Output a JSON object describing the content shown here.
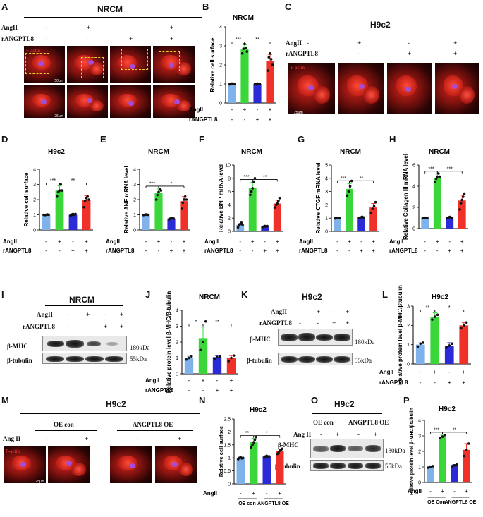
{
  "panels": {
    "A": {
      "letter": "A",
      "title": "NRCM",
      "row_labels": [
        "AngII",
        "rANGPTL8"
      ],
      "signs": {
        "angii": [
          "-",
          "+",
          "-",
          "+"
        ],
        "rangptl8": [
          "-",
          "-",
          "+",
          "+"
        ]
      },
      "stain": "F-actin",
      "scale_top": "50μm",
      "scale_bottom": "25μm"
    },
    "B": {
      "letter": "B",
      "title": "NRCM"
    },
    "C": {
      "letter": "C",
      "title": "H9c2",
      "row_labels": [
        "AngII",
        "rANGPTL8"
      ],
      "signs": {
        "angii": [
          "-",
          "+",
          "-",
          "+"
        ],
        "rangptl8": [
          "-",
          "-",
          "+",
          "+"
        ]
      },
      "stain": "F-actin",
      "scale": "25μm"
    },
    "D": {
      "letter": "D",
      "title": "H9c2"
    },
    "E": {
      "letter": "E",
      "title": "NRCM"
    },
    "F": {
      "letter": "F",
      "title": "NRCM"
    },
    "G": {
      "letter": "G",
      "title": "NRCM"
    },
    "H": {
      "letter": "H",
      "title": "NRCM"
    },
    "I": {
      "letter": "I",
      "title": "NRCM",
      "row_labels": [
        "AngII",
        "rANGPTL8"
      ],
      "signs": {
        "angii": [
          "-",
          "+",
          "-",
          "+"
        ],
        "rangptl8": [
          "-",
          "-",
          "+",
          "+"
        ]
      },
      "bands": [
        "β-MHC",
        "β-tubulin"
      ],
      "kda": [
        "180kDa",
        "55kDa"
      ]
    },
    "J": {
      "letter": "J",
      "title": "NRCM"
    },
    "K": {
      "letter": "K",
      "title": "H9c2",
      "row_labels": [
        "AngII",
        "rANGPTL8"
      ],
      "signs": {
        "angii": [
          "-",
          "+",
          "-",
          "+"
        ],
        "rangptl8": [
          "-",
          "-",
          "+",
          "+"
        ]
      },
      "bands": [
        "β-MHC",
        "β-tubulin"
      ],
      "kda": [
        "180kDa",
        "55kDa"
      ]
    },
    "L": {
      "letter": "L",
      "title": "H9c2"
    },
    "M": {
      "letter": "M",
      "title": "H9c2",
      "groups": [
        "OE con",
        "ANGPTL8 OE"
      ],
      "row_label": "Ang II",
      "signs": [
        "-",
        "+",
        "-",
        "+"
      ],
      "stain": "F-actin",
      "scale": "25μm"
    },
    "N": {
      "letter": "N",
      "title": "H9c2"
    },
    "O": {
      "letter": "O",
      "title": "H9c2",
      "groups": [
        "OE con",
        "ANGPTL8 OE"
      ],
      "row_label": "Ang II",
      "signs": [
        "-",
        "+",
        "-",
        "+"
      ],
      "bands": [
        "β-MHC",
        "β-tubulin"
      ],
      "kda": [
        "180kDa",
        "55kDa"
      ]
    },
    "P": {
      "letter": "P",
      "title": "H9c2"
    }
  },
  "colors": {
    "ctrl": "#7fb2ea",
    "angii": "#3ad63a",
    "r8": "#2a2ad6",
    "both": "#f0312a"
  },
  "chart_data": [
    {
      "id": "B",
      "type": "bar",
      "title": "NRCM",
      "ylabel": "Relative cell surface",
      "ylim": [
        0,
        4
      ],
      "yticks": [
        0,
        1,
        2,
        3,
        4
      ],
      "values": [
        1.0,
        2.85,
        1.0,
        2.2
      ],
      "errors": [
        0.05,
        0.2,
        0.05,
        0.35
      ],
      "points": [
        [
          0.98,
          1.0,
          1.02,
          1.0,
          0.99
        ],
        [
          2.6,
          2.85,
          3.1,
          2.9,
          2.7
        ],
        [
          1.0,
          0.98,
          1.02,
          1.0,
          1.0
        ],
        [
          1.7,
          2.4,
          2.6,
          2.3,
          2.0
        ]
      ],
      "sig": [
        [
          "***",
          0,
          1
        ],
        [
          "**",
          1,
          3
        ]
      ],
      "rows": [
        {
          "label": "AngII",
          "signs": [
            "-",
            "+",
            "-",
            "+"
          ]
        },
        {
          "label": "rANGPTL8",
          "signs": [
            "-",
            "-",
            "+",
            "+"
          ]
        }
      ]
    },
    {
      "id": "D",
      "type": "bar",
      "title": "H9c2",
      "ylabel": "Relative cell surface",
      "ylim": [
        0,
        4
      ],
      "yticks": [
        0,
        1,
        2,
        3,
        4
      ],
      "values": [
        1.0,
        2.6,
        1.0,
        2.0
      ],
      "errors": [
        0.03,
        0.3,
        0.08,
        0.25
      ],
      "points": [
        [
          1.0,
          0.98,
          1.0,
          1.02,
          1.0
        ],
        [
          2.2,
          2.5,
          2.6,
          3.0,
          2.6
        ],
        [
          0.95,
          1.0,
          1.05,
          1.0,
          1.05
        ],
        [
          1.5,
          1.9,
          2.1,
          2.2,
          2.0
        ]
      ],
      "sig": [
        [
          "***",
          0,
          1
        ],
        [
          "**",
          1,
          3
        ]
      ],
      "rows": [
        {
          "label": "AngII",
          "signs": [
            "-",
            "+",
            "-",
            "+"
          ]
        },
        {
          "label": "rANGPTL8",
          "signs": [
            "-",
            "-",
            "+",
            "+"
          ]
        }
      ]
    },
    {
      "id": "E",
      "type": "bar",
      "title": "NRCM",
      "ylabel": "Relative ANF mRNA level",
      "ylim": [
        0,
        4
      ],
      "yticks": [
        0,
        1,
        2,
        3,
        4
      ],
      "values": [
        1.0,
        2.45,
        0.75,
        1.9
      ],
      "errors": [
        0.05,
        0.25,
        0.05,
        0.3
      ],
      "points": [
        [
          0.98,
          1.0,
          1.02,
          1.0,
          1.0
        ],
        [
          2.0,
          2.3,
          2.5,
          2.7,
          2.6
        ],
        [
          0.7,
          0.72,
          0.8,
          0.78,
          0.75
        ],
        [
          1.4,
          1.8,
          2.0,
          2.2,
          2.0
        ]
      ],
      "sig": [
        [
          "***",
          0,
          1
        ],
        [
          "*",
          1,
          3
        ]
      ],
      "rows": [
        {
          "label": "AngII",
          "signs": [
            "-",
            "+",
            "-",
            "+"
          ]
        },
        {
          "label": "rANGPTL8",
          "signs": [
            "-",
            "-",
            "+",
            "+"
          ]
        }
      ]
    },
    {
      "id": "F",
      "type": "bar",
      "title": "NRCM",
      "ylabel": "Relative BNP mRNA level",
      "ylim": [
        0,
        10
      ],
      "yticks": [
        0,
        2,
        4,
        6,
        8,
        10
      ],
      "values": [
        1.0,
        6.5,
        0.75,
        4.2
      ],
      "errors": [
        0.2,
        0.9,
        0.1,
        0.5
      ],
      "points": [
        [
          0.6,
          0.9,
          1.1,
          1.3,
          1.0
        ],
        [
          5.5,
          6.0,
          6.5,
          7.5,
          8.0
        ],
        [
          0.65,
          0.7,
          0.8,
          0.75,
          0.8
        ],
        [
          3.6,
          4.0,
          4.2,
          4.6,
          5.0
        ]
      ],
      "sig": [
        [
          "***",
          0,
          1
        ],
        [
          "**",
          1,
          3
        ]
      ],
      "rows": [
        {
          "label": "AngII",
          "signs": [
            "-",
            "+",
            "-",
            "+"
          ]
        },
        {
          "label": "rANGPTL8",
          "signs": [
            "-",
            "-",
            "+",
            "+"
          ]
        }
      ]
    },
    {
      "id": "G",
      "type": "bar",
      "title": "NRCM",
      "ylabel": "Relative CTGF mRNA level",
      "ylim": [
        0,
        5
      ],
      "yticks": [
        0,
        1,
        2,
        3,
        4,
        5
      ],
      "values": [
        1.0,
        3.2,
        1.05,
        1.8
      ],
      "errors": [
        0.05,
        0.4,
        0.05,
        0.3
      ],
      "points": [
        [
          0.98,
          1.0,
          1.02,
          1.0
        ],
        [
          2.7,
          3.0,
          3.4,
          3.8
        ],
        [
          1.0,
          1.05,
          1.1,
          1.05
        ],
        [
          1.4,
          1.7,
          1.9,
          2.2
        ]
      ],
      "sig": [
        [
          "***",
          0,
          1
        ],
        [
          "**",
          1,
          3
        ]
      ],
      "rows": [
        {
          "label": "AngII",
          "signs": [
            "-",
            "+",
            "-",
            "+"
          ]
        },
        {
          "label": "rANGPTL8",
          "signs": [
            "-",
            "-",
            "+",
            "+"
          ]
        }
      ]
    },
    {
      "id": "H",
      "type": "bar",
      "title": "NRCM",
      "ylabel": "Relative Collagen III mRNA level",
      "ylim": [
        0,
        6
      ],
      "yticks": [
        0,
        2,
        4,
        6
      ],
      "values": [
        1.0,
        4.8,
        1.05,
        2.65
      ],
      "errors": [
        0.05,
        0.35,
        0.05,
        0.5
      ],
      "points": [
        [
          0.98,
          1.0,
          1.02,
          1.0,
          1.0
        ],
        [
          4.4,
          4.7,
          4.9,
          5.2,
          4.9
        ],
        [
          1.0,
          1.05,
          1.1,
          1.05,
          1.0
        ],
        [
          1.8,
          2.4,
          2.7,
          3.0,
          3.3
        ]
      ],
      "sig": [
        [
          "***",
          0,
          1
        ],
        [
          "***",
          1,
          3
        ]
      ],
      "rows": [
        {
          "label": "AngII",
          "signs": [
            "-",
            "+",
            "-",
            "+"
          ]
        },
        {
          "label": "rANGPTL8",
          "signs": [
            "-",
            "-",
            "+",
            "+"
          ]
        }
      ]
    },
    {
      "id": "J",
      "type": "bar",
      "title": "NRCM",
      "ylabel": "Relative protein level β-MHC/β-tubulin",
      "ylim": [
        0,
        4
      ],
      "yticks": [
        0,
        1,
        2,
        3,
        4
      ],
      "values": [
        1.0,
        2.25,
        1.05,
        1.0
      ],
      "errors": [
        0.1,
        0.7,
        0.1,
        0.15
      ],
      "points": [
        [
          0.9,
          1.0,
          1.1
        ],
        [
          1.5,
          2.0,
          3.3
        ],
        [
          0.95,
          1.05,
          1.1
        ],
        [
          0.8,
          1.0,
          1.15
        ]
      ],
      "sig": [
        [
          "*",
          0,
          1
        ],
        [
          "**",
          1,
          3
        ]
      ],
      "rows": [
        {
          "label": "AngII",
          "signs": [
            "-",
            "+",
            "-",
            "+"
          ]
        },
        {
          "label": "rANGPTL8",
          "signs": [
            "-",
            "-",
            "+",
            "+"
          ]
        }
      ]
    },
    {
      "id": "L",
      "type": "bar",
      "title": "H9c2",
      "ylabel": "Relative protein level β-MHC/βtubulin",
      "ylim": [
        0,
        3
      ],
      "yticks": [
        0,
        1,
        2,
        3
      ],
      "values": [
        1.0,
        2.45,
        0.95,
        2.0
      ],
      "errors": [
        0.1,
        0.2,
        0.15,
        0.15
      ],
      "points": [
        [
          0.9,
          1.05,
          1.1
        ],
        [
          2.3,
          2.45,
          2.55
        ],
        [
          0.85,
          0.95,
          1.05
        ],
        [
          1.85,
          2.0,
          2.15
        ]
      ],
      "sig": [
        [
          "**",
          0,
          1
        ],
        [
          "*",
          1,
          3
        ]
      ],
      "rows": [
        {
          "label": "AngII",
          "signs": [
            "-",
            "+",
            "-",
            "+"
          ]
        },
        {
          "label": "rANGPTL8",
          "signs": [
            "-",
            "-",
            "+",
            "+"
          ]
        }
      ]
    },
    {
      "id": "N",
      "type": "bar",
      "title": "H9c2",
      "ylabel": "Relative cell surface",
      "ylim": [
        0,
        2.5
      ],
      "yticks": [
        0,
        0.5,
        1,
        1.5,
        2,
        2.5
      ],
      "values": [
        1.0,
        1.6,
        1.05,
        1.27
      ],
      "errors": [
        0.03,
        0.15,
        0.03,
        0.07
      ],
      "points": [
        [
          0.95,
          1.0,
          1.02,
          0.98,
          1.0
        ],
        [
          1.4,
          1.5,
          1.6,
          1.7,
          1.8
        ],
        [
          1.02,
          1.05,
          1.08,
          1.04,
          1.06
        ],
        [
          1.15,
          1.2,
          1.28,
          1.3,
          1.35
        ]
      ],
      "sig": [
        [
          "**",
          0,
          1
        ],
        [
          "*",
          1,
          3
        ]
      ],
      "rows": [
        {
          "label": "AngII",
          "signs": [
            "-",
            "+",
            "-",
            "+"
          ]
        }
      ],
      "groups": [
        "OE con",
        "ANGPTL8 OE"
      ]
    },
    {
      "id": "P",
      "type": "bar",
      "title": "H9c2",
      "ylabel": "Relative protein level β-MHC/βtubulin",
      "ylim": [
        0,
        4
      ],
      "yticks": [
        0,
        1,
        2,
        3,
        4
      ],
      "values": [
        1.0,
        2.95,
        1.1,
        2.1
      ],
      "errors": [
        0.08,
        0.1,
        0.05,
        0.4
      ],
      "points": [
        [
          0.95,
          1.0,
          1.05
        ],
        [
          2.85,
          2.95,
          3.05
        ],
        [
          1.05,
          1.1,
          1.15
        ],
        [
          1.7,
          2.1,
          2.5
        ]
      ],
      "sig": [
        [
          "***",
          0,
          1
        ],
        [
          "**",
          1,
          3
        ]
      ],
      "rows": [
        {
          "label": "AngII",
          "signs": [
            "-",
            "+",
            "-",
            "+"
          ]
        }
      ],
      "groups": [
        "OE Con",
        "ANGPTL8 OE"
      ]
    }
  ]
}
